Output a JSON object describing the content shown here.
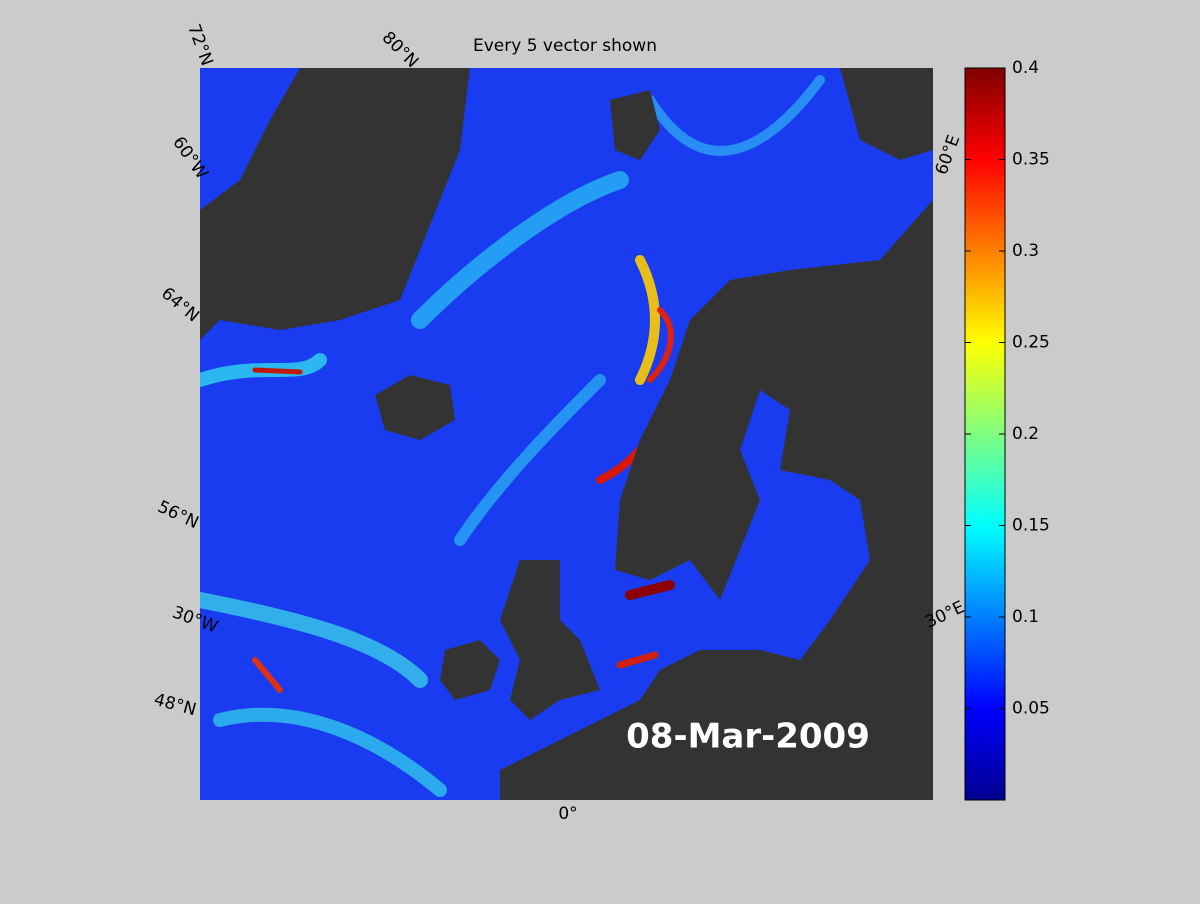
{
  "chart_data": {
    "type": "map",
    "title": "Every 5 vector shown",
    "annotation": "08-Mar-2009",
    "graticule_labels": [
      "72°N",
      "80°N",
      "60°W",
      "64°N",
      "56°N",
      "30°W",
      "48°N",
      "0°",
      "30°E",
      "60°E"
    ],
    "colorbar": {
      "lim": [
        0,
        0.4
      ],
      "ticks": [
        0.05,
        0.1,
        0.15,
        0.2,
        0.25,
        0.3,
        0.35,
        0.4
      ]
    }
  }
}
